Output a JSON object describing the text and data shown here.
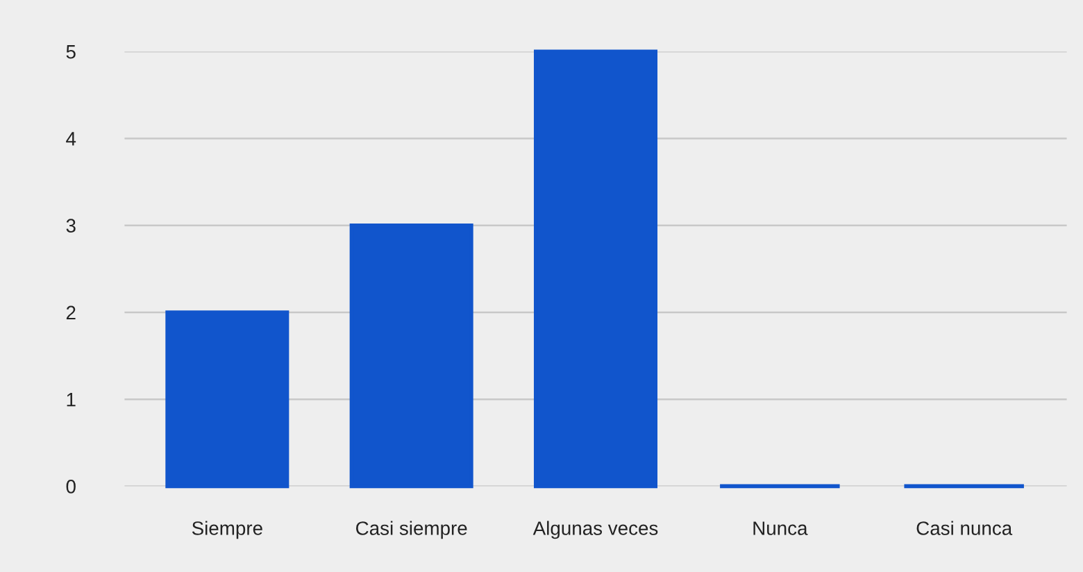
{
  "chart_data": {
    "type": "bar",
    "categories": [
      "Siempre",
      "Casi siempre",
      "Algunas veces",
      "Nunca",
      "Casi nunca"
    ],
    "values": [
      2,
      3,
      5,
      0,
      0
    ],
    "color": "#1155cc",
    "ylim": [
      0,
      5
    ],
    "yticks": [
      0,
      1,
      2,
      3,
      4,
      5
    ],
    "grid": "y",
    "legend": false
  }
}
